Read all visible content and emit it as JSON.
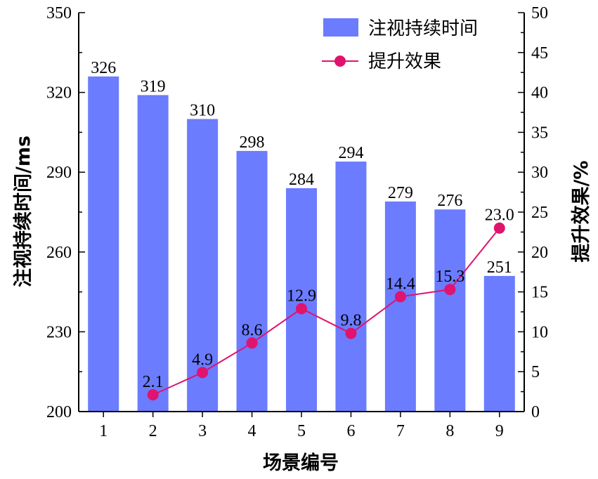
{
  "chart_data": {
    "type": "bar",
    "categories": [
      "1",
      "2",
      "3",
      "4",
      "5",
      "6",
      "7",
      "8",
      "9"
    ],
    "xlabel": "场景编号",
    "ylabel": "注视持续时间/ms",
    "y2label": "提升效果/%",
    "ylim": [
      200,
      350
    ],
    "y_ticks": [
      200,
      230,
      260,
      290,
      320,
      350
    ],
    "y2lim": [
      0,
      50
    ],
    "y2_ticks": [
      0,
      5,
      10,
      15,
      20,
      25,
      30,
      35,
      40,
      45,
      50
    ],
    "grid": false,
    "legend_position": "top-right",
    "series": [
      {
        "name": "注视持续时间",
        "type": "bar",
        "axis": "left",
        "color": "#6b7cff",
        "values": [
          326,
          319,
          310,
          298,
          284,
          294,
          279,
          276,
          251
        ],
        "labels": [
          "326",
          "319",
          "310",
          "298",
          "284",
          "294",
          "279",
          "276",
          "251"
        ]
      },
      {
        "name": "提升效果",
        "type": "line",
        "axis": "right",
        "color": "#e0136f",
        "values": [
          null,
          2.1,
          4.9,
          8.6,
          12.9,
          9.8,
          14.4,
          15.3,
          23.0
        ],
        "labels": [
          "",
          "2.1",
          "4.9",
          "8.6",
          "12.9",
          "9.8",
          "14.4",
          "15.3",
          "23.0"
        ]
      }
    ]
  }
}
